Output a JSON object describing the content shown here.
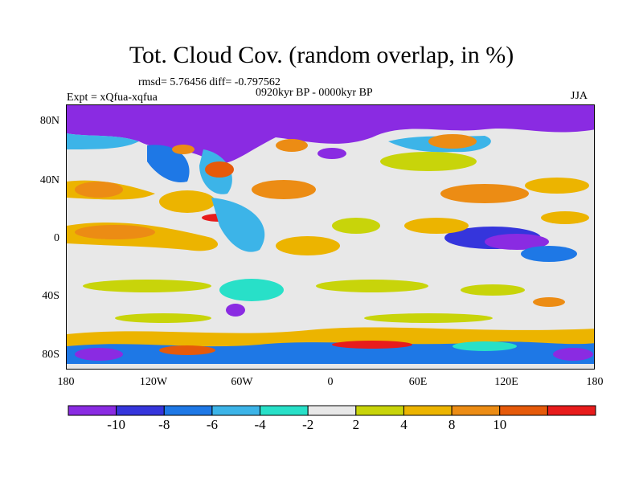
{
  "title": "Tot. Cloud Cov. (random overlap, in %)",
  "stats": "rmsd= 5.76456 diff= -0.797562",
  "period": "0920kyr BP - 0000kyr BP",
  "experiment": "Expt = xQfua-xqfua",
  "season": "JJA",
  "lat_labels": [
    "80N",
    "40N",
    "0",
    "40S",
    "80S"
  ],
  "lon_labels": [
    "180",
    "120W",
    "60W",
    "0",
    "60E",
    "120E",
    "180"
  ],
  "colorbar": {
    "colors": [
      "#8a2be2",
      "#3535dc",
      "#1e78e6",
      "#3cb4e8",
      "#28e0c8",
      "#e8e8e8",
      "#c8d40a",
      "#ecb400",
      "#ec8c14",
      "#e65a0a",
      "#e81c1c"
    ],
    "labels": [
      "-10",
      "-8",
      "-6",
      "-4",
      "-2",
      "2",
      "4",
      "8",
      "10"
    ]
  }
}
